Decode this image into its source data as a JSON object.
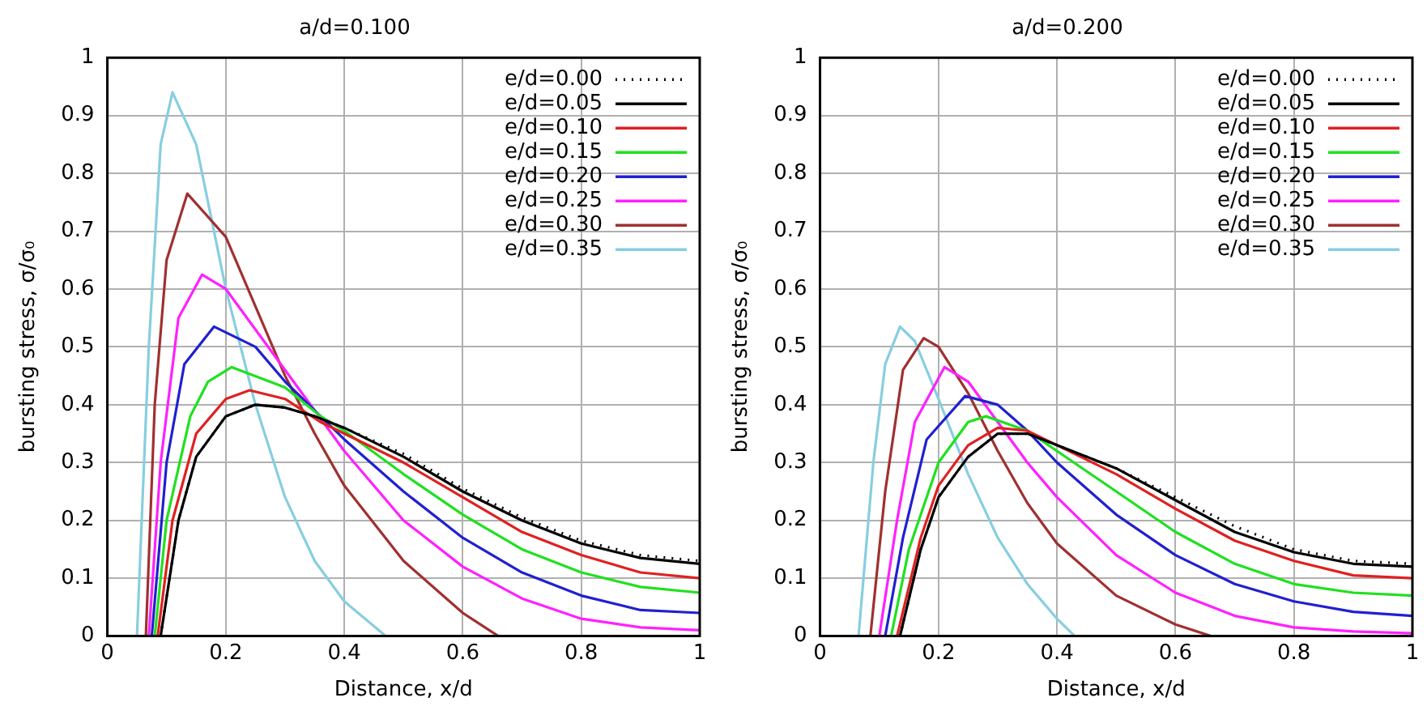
{
  "chart_data": [
    {
      "type": "line",
      "title": "a/d=0.100",
      "xlabel": "Distance, x/d",
      "ylabel": "bursting stress, σ/σ₀",
      "xlim": [
        0,
        1
      ],
      "ylim": [
        0,
        1
      ],
      "xticks": [
        0,
        0.2,
        0.4,
        0.6,
        0.8,
        1
      ],
      "yticks": [
        0,
        0.1,
        0.2,
        0.3,
        0.4,
        0.5,
        0.6,
        0.7,
        0.8,
        0.9,
        1
      ],
      "grid": true,
      "legend": "top right",
      "series": [
        {
          "name": "e/d=0.00",
          "color": "#000000",
          "line_style": "dotted",
          "x": [
            0.09,
            0.12,
            0.15,
            0.2,
            0.25,
            0.3,
            0.35,
            0.4,
            0.5,
            0.6,
            0.7,
            0.8,
            0.9,
            1
          ],
          "values": [
            0,
            0.2,
            0.31,
            0.38,
            0.4,
            0.395,
            0.38,
            0.36,
            0.315,
            0.255,
            0.205,
            0.165,
            0.14,
            0.13
          ]
        },
        {
          "name": "e/d=0.05",
          "color": "#000000",
          "line_style": "solid",
          "x": [
            0.09,
            0.12,
            0.15,
            0.2,
            0.25,
            0.3,
            0.35,
            0.4,
            0.5,
            0.6,
            0.7,
            0.8,
            0.9,
            1
          ],
          "values": [
            0,
            0.2,
            0.31,
            0.38,
            0.4,
            0.395,
            0.38,
            0.36,
            0.31,
            0.25,
            0.2,
            0.16,
            0.135,
            0.125
          ]
        },
        {
          "name": "e/d=0.10",
          "color": "#e02020",
          "line_style": "solid",
          "x": [
            0.085,
            0.11,
            0.15,
            0.2,
            0.24,
            0.3,
            0.36,
            0.4,
            0.5,
            0.6,
            0.7,
            0.8,
            0.9,
            1
          ],
          "values": [
            0,
            0.2,
            0.35,
            0.41,
            0.425,
            0.41,
            0.37,
            0.35,
            0.3,
            0.24,
            0.18,
            0.14,
            0.11,
            0.1
          ]
        },
        {
          "name": "e/d=0.15",
          "color": "#20e020",
          "line_style": "solid",
          "x": [
            0.08,
            0.1,
            0.14,
            0.17,
            0.21,
            0.3,
            0.36,
            0.4,
            0.5,
            0.6,
            0.7,
            0.8,
            0.9,
            1
          ],
          "values": [
            0,
            0.2,
            0.38,
            0.44,
            0.465,
            0.43,
            0.38,
            0.355,
            0.28,
            0.21,
            0.15,
            0.11,
            0.085,
            0.075
          ]
        },
        {
          "name": "e/d=0.20",
          "color": "#2020d0",
          "line_style": "solid",
          "x": [
            0.075,
            0.1,
            0.13,
            0.18,
            0.25,
            0.3,
            0.36,
            0.4,
            0.5,
            0.6,
            0.7,
            0.8,
            0.9,
            1
          ],
          "values": [
            0,
            0.3,
            0.47,
            0.535,
            0.5,
            0.44,
            0.38,
            0.34,
            0.25,
            0.17,
            0.11,
            0.07,
            0.045,
            0.04
          ]
        },
        {
          "name": "e/d=0.25",
          "color": "#ff20ff",
          "line_style": "solid",
          "x": [
            0.07,
            0.09,
            0.12,
            0.16,
            0.2,
            0.25,
            0.3,
            0.35,
            0.4,
            0.5,
            0.6,
            0.7,
            0.8,
            0.9,
            1
          ],
          "values": [
            0,
            0.3,
            0.55,
            0.625,
            0.6,
            0.53,
            0.46,
            0.39,
            0.32,
            0.2,
            0.12,
            0.065,
            0.03,
            0.015,
            0.01
          ]
        },
        {
          "name": "e/d=0.30",
          "color": "#a03030",
          "line_style": "solid",
          "x": [
            0.065,
            0.08,
            0.1,
            0.135,
            0.2,
            0.25,
            0.3,
            0.35,
            0.4,
            0.5,
            0.6,
            0.66
          ],
          "values": [
            0,
            0.4,
            0.65,
            0.765,
            0.69,
            0.57,
            0.45,
            0.35,
            0.26,
            0.13,
            0.04,
            0
          ]
        },
        {
          "name": "e/d=0.35",
          "color": "#87cee0",
          "line_style": "solid",
          "x": [
            0.05,
            0.07,
            0.09,
            0.11,
            0.15,
            0.2,
            0.25,
            0.3,
            0.35,
            0.4,
            0.47
          ],
          "values": [
            0,
            0.5,
            0.85,
            0.94,
            0.85,
            0.6,
            0.4,
            0.24,
            0.13,
            0.06,
            0
          ]
        }
      ]
    },
    {
      "type": "line",
      "title": "a/d=0.200",
      "xlabel": "Distance, x/d",
      "ylabel": "bursting stress, σ/σ₀",
      "xlim": [
        0,
        1
      ],
      "ylim": [
        0,
        1
      ],
      "xticks": [
        0,
        0.2,
        0.4,
        0.6,
        0.8,
        1
      ],
      "yticks": [
        0,
        0.1,
        0.2,
        0.3,
        0.4,
        0.5,
        0.6,
        0.7,
        0.8,
        0.9,
        1
      ],
      "grid": true,
      "legend": "top right",
      "series": [
        {
          "name": "e/d=0.00",
          "color": "#000000",
          "line_style": "dotted",
          "x": [
            0.135,
            0.17,
            0.2,
            0.25,
            0.3,
            0.35,
            0.4,
            0.5,
            0.6,
            0.7,
            0.8,
            0.9,
            1
          ],
          "values": [
            0,
            0.15,
            0.24,
            0.31,
            0.35,
            0.35,
            0.33,
            0.29,
            0.24,
            0.19,
            0.15,
            0.13,
            0.125
          ]
        },
        {
          "name": "e/d=0.05",
          "color": "#000000",
          "line_style": "solid",
          "x": [
            0.135,
            0.17,
            0.2,
            0.25,
            0.3,
            0.35,
            0.4,
            0.5,
            0.6,
            0.7,
            0.8,
            0.9,
            1
          ],
          "values": [
            0,
            0.15,
            0.24,
            0.31,
            0.35,
            0.35,
            0.33,
            0.29,
            0.235,
            0.18,
            0.145,
            0.125,
            0.12
          ]
        },
        {
          "name": "e/d=0.10",
          "color": "#e02020",
          "line_style": "solid",
          "x": [
            0.13,
            0.17,
            0.2,
            0.25,
            0.3,
            0.35,
            0.4,
            0.5,
            0.6,
            0.7,
            0.8,
            0.9,
            1
          ],
          "values": [
            0,
            0.17,
            0.26,
            0.33,
            0.36,
            0.355,
            0.33,
            0.28,
            0.22,
            0.165,
            0.13,
            0.105,
            0.1
          ]
        },
        {
          "name": "e/d=0.15",
          "color": "#20e020",
          "line_style": "solid",
          "x": [
            0.12,
            0.15,
            0.2,
            0.25,
            0.28,
            0.35,
            0.4,
            0.5,
            0.6,
            0.7,
            0.8,
            0.9,
            1
          ],
          "values": [
            0,
            0.15,
            0.3,
            0.37,
            0.38,
            0.355,
            0.32,
            0.25,
            0.18,
            0.125,
            0.09,
            0.075,
            0.07
          ]
        },
        {
          "name": "e/d=0.20",
          "color": "#2020d0",
          "line_style": "solid",
          "x": [
            0.11,
            0.14,
            0.18,
            0.245,
            0.3,
            0.35,
            0.4,
            0.5,
            0.6,
            0.7,
            0.8,
            0.9,
            1
          ],
          "values": [
            0,
            0.17,
            0.34,
            0.415,
            0.4,
            0.355,
            0.3,
            0.21,
            0.14,
            0.09,
            0.06,
            0.042,
            0.035
          ]
        },
        {
          "name": "e/d=0.25",
          "color": "#ff20ff",
          "line_style": "solid",
          "x": [
            0.1,
            0.13,
            0.16,
            0.21,
            0.25,
            0.3,
            0.35,
            0.4,
            0.5,
            0.6,
            0.7,
            0.8,
            0.9,
            1
          ],
          "values": [
            0,
            0.2,
            0.37,
            0.465,
            0.44,
            0.37,
            0.3,
            0.24,
            0.14,
            0.075,
            0.035,
            0.015,
            0.008,
            0.005
          ]
        },
        {
          "name": "e/d=0.30",
          "color": "#a03030",
          "line_style": "solid",
          "x": [
            0.085,
            0.11,
            0.14,
            0.175,
            0.2,
            0.25,
            0.3,
            0.35,
            0.4,
            0.5,
            0.6,
            0.66
          ],
          "values": [
            0,
            0.25,
            0.46,
            0.515,
            0.5,
            0.42,
            0.32,
            0.23,
            0.16,
            0.07,
            0.02,
            0
          ]
        },
        {
          "name": "e/d=0.35",
          "color": "#87cee0",
          "line_style": "solid",
          "x": [
            0.065,
            0.09,
            0.11,
            0.135,
            0.16,
            0.2,
            0.25,
            0.3,
            0.35,
            0.4,
            0.43
          ],
          "values": [
            0,
            0.3,
            0.47,
            0.535,
            0.51,
            0.41,
            0.28,
            0.17,
            0.09,
            0.03,
            0
          ]
        }
      ]
    }
  ]
}
